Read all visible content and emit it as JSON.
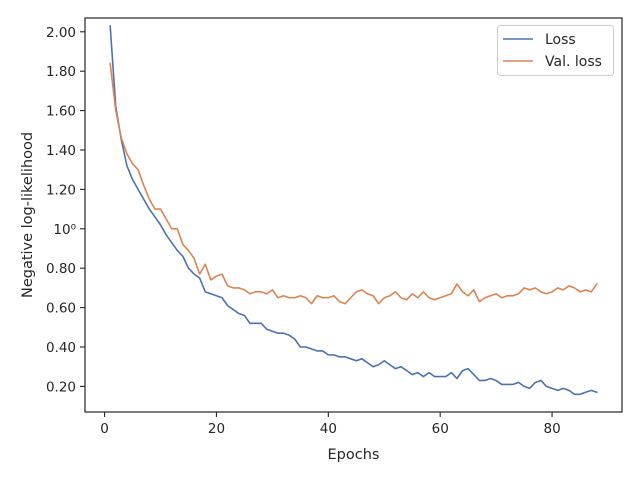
{
  "chart_data": {
    "type": "line",
    "title": "",
    "xlabel": "Epochs",
    "ylabel": "Negative log-likelihood",
    "xlim": [
      -3.5,
      92.5
    ],
    "ylim": [
      0.07,
      2.07
    ],
    "x_ticks": [
      0,
      20,
      40,
      60,
      80
    ],
    "x_tick_labels": [
      "0",
      "20",
      "40",
      "60",
      "80"
    ],
    "y_ticks": [
      0.2,
      0.4,
      0.6,
      0.8,
      1.0,
      1.2,
      1.4,
      1.6,
      1.8,
      2.0
    ],
    "y_tick_labels": [
      "0.20",
      "0.40",
      "0.60",
      "0.80",
      "10⁰",
      "1.20",
      "1.40",
      "1.60",
      "1.80",
      "2.00"
    ],
    "grid": false,
    "legend_position": "top-right",
    "series": [
      {
        "name": "Loss",
        "color": "#4c72b0",
        "x": [
          1,
          2,
          3,
          4,
          5,
          6,
          7,
          8,
          9,
          10,
          11,
          12,
          13,
          14,
          15,
          16,
          17,
          18,
          19,
          20,
          21,
          22,
          23,
          24,
          25,
          26,
          27,
          28,
          29,
          30,
          31,
          32,
          33,
          34,
          35,
          36,
          37,
          38,
          39,
          40,
          41,
          42,
          43,
          44,
          45,
          46,
          47,
          48,
          49,
          50,
          51,
          52,
          53,
          54,
          55,
          56,
          57,
          58,
          59,
          60,
          61,
          62,
          63,
          64,
          65,
          66,
          67,
          68,
          69,
          70,
          71,
          72,
          73,
          74,
          75,
          76,
          77,
          78,
          79,
          80,
          81,
          82,
          83,
          84,
          85,
          86,
          87,
          88
        ],
        "values": [
          2.03,
          1.62,
          1.45,
          1.32,
          1.25,
          1.2,
          1.15,
          1.1,
          1.06,
          1.02,
          0.97,
          0.93,
          0.89,
          0.86,
          0.8,
          0.77,
          0.75,
          0.68,
          0.67,
          0.66,
          0.65,
          0.61,
          0.59,
          0.57,
          0.56,
          0.52,
          0.52,
          0.52,
          0.49,
          0.48,
          0.47,
          0.47,
          0.46,
          0.44,
          0.4,
          0.4,
          0.39,
          0.38,
          0.38,
          0.36,
          0.36,
          0.35,
          0.35,
          0.34,
          0.33,
          0.34,
          0.32,
          0.3,
          0.31,
          0.33,
          0.31,
          0.29,
          0.3,
          0.28,
          0.26,
          0.27,
          0.25,
          0.27,
          0.25,
          0.25,
          0.25,
          0.27,
          0.24,
          0.28,
          0.29,
          0.26,
          0.23,
          0.23,
          0.24,
          0.23,
          0.21,
          0.21,
          0.21,
          0.22,
          0.2,
          0.19,
          0.22,
          0.23,
          0.2,
          0.19,
          0.18,
          0.19,
          0.18,
          0.16,
          0.16,
          0.17,
          0.18,
          0.17
        ]
      },
      {
        "name": "Val. loss",
        "color": "#dd8452",
        "x": [
          1,
          2,
          3,
          4,
          5,
          6,
          7,
          8,
          9,
          10,
          11,
          12,
          13,
          14,
          15,
          16,
          17,
          18,
          19,
          20,
          21,
          22,
          23,
          24,
          25,
          26,
          27,
          28,
          29,
          30,
          31,
          32,
          33,
          34,
          35,
          36,
          37,
          38,
          39,
          40,
          41,
          42,
          43,
          44,
          45,
          46,
          47,
          48,
          49,
          50,
          51,
          52,
          53,
          54,
          55,
          56,
          57,
          58,
          59,
          60,
          61,
          62,
          63,
          64,
          65,
          66,
          67,
          68,
          69,
          70,
          71,
          72,
          73,
          74,
          75,
          76,
          77,
          78,
          79,
          80,
          81,
          82,
          83,
          84,
          85,
          86,
          87,
          88
        ],
        "values": [
          1.84,
          1.6,
          1.46,
          1.38,
          1.33,
          1.3,
          1.22,
          1.15,
          1.1,
          1.1,
          1.05,
          1.0,
          1.0,
          0.92,
          0.89,
          0.85,
          0.77,
          0.82,
          0.74,
          0.76,
          0.77,
          0.71,
          0.7,
          0.7,
          0.69,
          0.67,
          0.68,
          0.68,
          0.67,
          0.69,
          0.65,
          0.66,
          0.65,
          0.65,
          0.66,
          0.65,
          0.62,
          0.66,
          0.65,
          0.65,
          0.66,
          0.63,
          0.62,
          0.65,
          0.68,
          0.69,
          0.67,
          0.66,
          0.62,
          0.65,
          0.66,
          0.68,
          0.65,
          0.64,
          0.67,
          0.65,
          0.68,
          0.65,
          0.64,
          0.65,
          0.66,
          0.67,
          0.72,
          0.68,
          0.66,
          0.69,
          0.63,
          0.65,
          0.66,
          0.67,
          0.65,
          0.66,
          0.66,
          0.67,
          0.7,
          0.69,
          0.7,
          0.68,
          0.67,
          0.68,
          0.7,
          0.69,
          0.71,
          0.7,
          0.68,
          0.69,
          0.68,
          0.72
        ]
      }
    ]
  }
}
